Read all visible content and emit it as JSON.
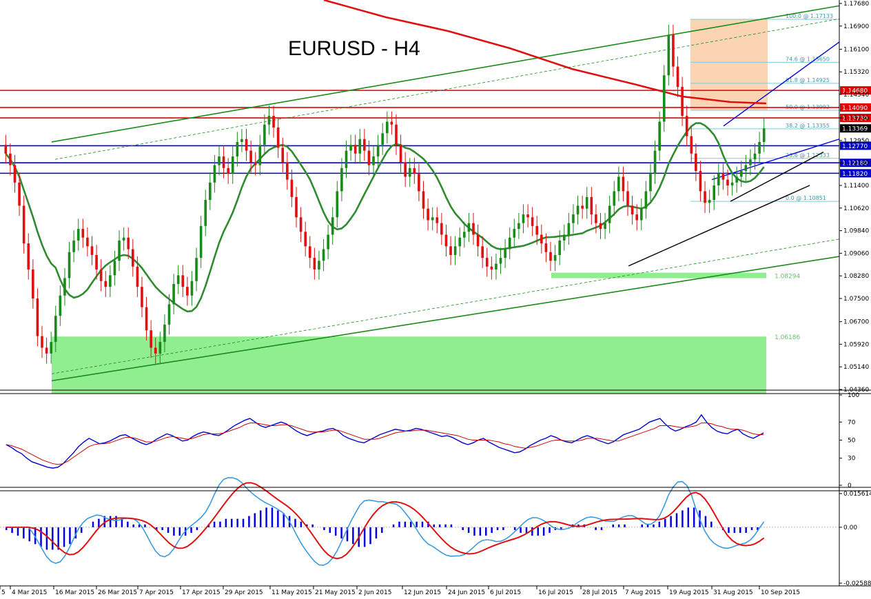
{
  "chart_data": [
    {
      "type": "candlestick",
      "title": "EURUSD - H4",
      "y_range": [
        1.0436,
        1.1768
      ],
      "y_ticks": [
        "1.17680",
        "1.16900",
        "1.16100",
        "1.15320",
        "1.14540",
        "1.13730",
        "1.12950",
        "1.12180",
        "1.11400",
        "1.10620",
        "1.09840",
        "1.09060",
        "1.08280",
        "1.07500",
        "1.06700",
        "1.05920",
        "1.05140",
        "1.04360"
      ],
      "x_labels": [
        "5",
        "4 Mar 2015",
        "16 Mar 2015",
        "26 Mar 2015",
        "7 Apr 2015",
        "17 Apr 2015",
        "29 Apr 2015",
        "11 May 2015",
        "21 May 2015",
        "2 Jun 2015",
        "12 Jun 2015",
        "24 Jun 2015",
        "6 Jul 2015",
        "16 Jul 2015",
        "28 Jul 2015",
        "7 Aug 2015",
        "19 Aug 2015",
        "31 Aug 2015",
        "10 Sep 2015"
      ],
      "current_price": "1.13369",
      "price_lines": [
        {
          "label": "1.14680",
          "value": 1.1468,
          "color": "#e00000"
        },
        {
          "label": "1.14090",
          "value": 1.1409,
          "color": "#e00000"
        },
        {
          "label": "1.13730",
          "value": 1.1373,
          "color": "#e00000"
        },
        {
          "label": "1.12770",
          "value": 1.1277,
          "color": "#0000cc"
        },
        {
          "label": "1.12180",
          "value": 1.1218,
          "color": "#0000cc"
        },
        {
          "label": "1.11820",
          "value": 1.1182,
          "color": "#0000cc"
        }
      ],
      "fib_levels": [
        {
          "label": "100.0 @ 1.17133",
          "value": 1.17133
        },
        {
          "label": "74.6 @ 1.15650",
          "value": 1.1565
        },
        {
          "label": "61.8 @ 1.14925",
          "value": 1.14925
        },
        {
          "label": "50.0 @ 1.13992",
          "value": 1.13992
        },
        {
          "label": "38.2 @ 1.13355",
          "value": 1.13355
        },
        {
          "label": "23.6 @ 1.12333",
          "value": 1.12333
        },
        {
          "label": "0.0 @ 1.10851",
          "value": 1.10851
        }
      ],
      "zones": [
        {
          "label": "1.08294",
          "value": 1.08294
        },
        {
          "label": "1.06186",
          "value": 1.06186
        }
      ],
      "close": [
        1.125,
        1.121,
        1.115,
        1.107,
        1.094,
        1.085,
        1.075,
        1.062,
        1.058,
        1.056,
        1.06,
        1.069,
        1.076,
        1.082,
        1.091,
        1.095,
        1.099,
        1.096,
        1.093,
        1.09,
        1.085,
        1.081,
        1.079,
        1.083,
        1.088,
        1.095,
        1.096,
        1.092,
        1.086,
        1.079,
        1.072,
        1.064,
        1.058,
        1.056,
        1.06,
        1.066,
        1.073,
        1.08,
        1.083,
        1.079,
        1.076,
        1.081,
        1.089,
        1.1,
        1.109,
        1.115,
        1.121,
        1.124,
        1.12,
        1.118,
        1.124,
        1.129,
        1.13,
        1.126,
        1.122,
        1.121,
        1.128,
        1.135,
        1.138,
        1.134,
        1.127,
        1.122,
        1.116,
        1.11,
        1.103,
        1.098,
        1.093,
        1.089,
        1.085,
        1.088,
        1.092,
        1.097,
        1.103,
        1.112,
        1.12,
        1.126,
        1.128,
        1.125,
        1.13,
        1.126,
        1.121,
        1.124,
        1.128,
        1.132,
        1.136,
        1.135,
        1.128,
        1.122,
        1.117,
        1.12,
        1.118,
        1.112,
        1.106,
        1.102,
        1.103,
        1.101,
        1.097,
        1.093,
        1.09,
        1.093,
        1.096,
        1.098,
        1.101,
        1.097,
        1.093,
        1.089,
        1.086,
        1.085,
        1.087,
        1.089,
        1.092,
        1.096,
        1.099,
        1.101,
        1.104,
        1.103,
        1.1,
        1.097,
        1.094,
        1.091,
        1.088,
        1.09,
        1.095,
        1.097,
        1.101,
        1.104,
        1.107,
        1.106,
        1.11,
        1.104,
        1.101,
        1.099,
        1.101,
        1.107,
        1.112,
        1.117,
        1.112,
        1.107,
        1.104,
        1.102,
        1.106,
        1.112,
        1.118,
        1.126,
        1.136,
        1.152,
        1.166,
        1.155,
        1.148,
        1.138,
        1.131,
        1.125,
        1.119,
        1.112,
        1.108,
        1.109,
        1.114,
        1.118,
        1.116,
        1.114,
        1.115,
        1.117,
        1.119,
        1.121,
        1.123,
        1.125,
        1.129,
        1.1337
      ]
    },
    {
      "type": "line",
      "name": "oscillator",
      "y_ticks": [
        "100",
        "70",
        "50",
        "30",
        "0"
      ],
      "series": [
        {
          "color": "#0000cc",
          "values": [
            45,
            42,
            38,
            35,
            30,
            26,
            24,
            22,
            20,
            19,
            20,
            24,
            30,
            36,
            43,
            48,
            52,
            49,
            46,
            47,
            49,
            52,
            55,
            56,
            53,
            50,
            47,
            45,
            47,
            51,
            54,
            57,
            55,
            52,
            49,
            50,
            54,
            57,
            59,
            58,
            56,
            55,
            58,
            62,
            66,
            69,
            72,
            74,
            70,
            66,
            64,
            66,
            68,
            70,
            68,
            64,
            60,
            57,
            55,
            57,
            59,
            60,
            62,
            63,
            60,
            55,
            52,
            50,
            48,
            47,
            50,
            53,
            56,
            58,
            60,
            62,
            61,
            60,
            61,
            63,
            62,
            60,
            58,
            56,
            54,
            55,
            53,
            50,
            47,
            45,
            47,
            50,
            52,
            48,
            45,
            42,
            40,
            38,
            36,
            37,
            40,
            44,
            47,
            50,
            52,
            55,
            53,
            50,
            48,
            47,
            50,
            53,
            55,
            53,
            50,
            48,
            46,
            48,
            52,
            56,
            58,
            60,
            62,
            66,
            70,
            72,
            74,
            68,
            63,
            60,
            62,
            65,
            67,
            70,
            78,
            70,
            64,
            60,
            58,
            57,
            60,
            62,
            57,
            54,
            52,
            55,
            58
          ]
        },
        {
          "color": "#cc0000",
          "values": [
            45,
            44,
            42,
            40,
            37,
            34,
            31,
            28,
            26,
            24,
            23,
            24,
            27,
            31,
            35,
            39,
            43,
            45,
            46,
            46,
            47,
            49,
            51,
            53,
            53,
            52,
            50,
            48,
            48,
            49,
            51,
            53,
            54,
            53,
            52,
            51,
            52,
            54,
            56,
            57,
            57,
            57,
            58,
            60,
            62,
            64,
            67,
            69,
            69,
            68,
            67,
            66,
            66,
            67,
            67,
            66,
            64,
            62,
            60,
            59,
            59,
            59,
            60,
            61,
            61,
            59,
            57,
            55,
            53,
            51,
            51,
            51,
            52,
            54,
            56,
            58,
            59,
            60,
            60,
            61,
            61,
            61,
            60,
            59,
            58,
            57,
            56,
            55,
            53,
            51,
            50,
            50,
            50,
            50,
            49,
            48,
            46,
            45,
            43,
            42,
            41,
            42,
            43,
            45,
            47,
            49,
            50,
            50,
            49,
            49,
            49,
            50,
            52,
            52,
            52,
            51,
            50,
            49,
            49,
            51,
            53,
            55,
            57,
            59,
            61,
            63,
            66,
            66,
            66,
            65,
            64,
            64,
            65,
            66,
            69,
            69,
            68,
            66,
            65,
            63,
            62,
            62,
            61,
            59,
            57,
            56,
            56
          ]
        }
      ]
    },
    {
      "type": "bar",
      "name": "macd",
      "y_ticks": [
        "0.015614",
        "0.00",
        "-0.025887"
      ],
      "ylim": [
        -0.025887,
        0.015614
      ],
      "histogram": [
        -0.001,
        -0.002,
        -0.003,
        -0.004,
        -0.005,
        -0.006,
        -0.007,
        -0.008,
        -0.008,
        -0.008,
        -0.007,
        -0.006,
        -0.004,
        -0.002,
        0.0,
        0.002,
        0.003,
        0.004,
        0.004,
        0.004,
        0.003,
        0.002,
        0.001,
        0.001,
        0.001,
        0.0,
        -0.001,
        -0.001,
        -0.002,
        -0.003,
        -0.003,
        -0.003,
        -0.002,
        -0.001,
        0.0,
        0.001,
        0.002,
        0.002,
        0.003,
        0.003,
        0.003,
        0.003,
        0.004,
        0.005,
        0.006,
        0.007,
        0.007,
        0.006,
        0.005,
        0.004,
        0.003,
        0.002,
        0.001,
        0.001,
        0.0,
        -0.001,
        -0.002,
        -0.003,
        -0.004,
        -0.005,
        -0.006,
        -0.007,
        -0.007,
        -0.006,
        -0.004,
        -0.002,
        0.0,
        0.001,
        0.002,
        0.002,
        0.002,
        0.002,
        0.002,
        0.002,
        0.001,
        0.001,
        0.001,
        0.001,
        0.0,
        -0.001,
        -0.002,
        -0.003,
        -0.003,
        -0.003,
        -0.002,
        -0.001,
        -0.001,
        0.0,
        -0.001,
        -0.002,
        -0.002,
        -0.003,
        -0.003,
        -0.003,
        -0.002,
        -0.001,
        -0.001,
        0.0,
        0.001,
        0.001,
        0.001,
        0.0,
        -0.001,
        -0.001,
        0.0,
        0.001,
        0.001,
        0.001,
        0.0,
        0.0,
        0.001,
        0.001,
        0.001,
        0.002,
        0.003,
        0.004,
        0.005,
        0.006,
        0.007,
        0.007,
        0.006,
        0.004,
        0.002,
        0.0,
        -0.001,
        -0.002,
        -0.002,
        -0.002,
        -0.002,
        -0.001,
        -0.001,
        0.0
      ]
    }
  ]
}
